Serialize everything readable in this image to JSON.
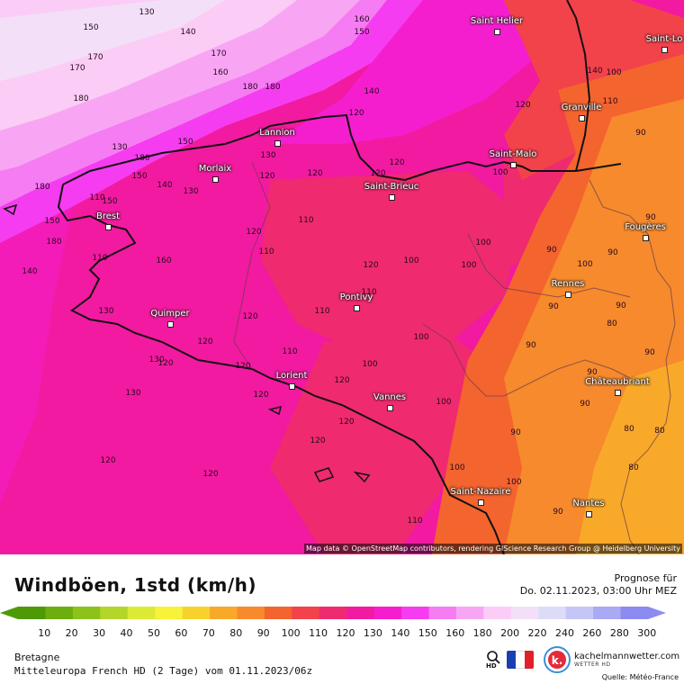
{
  "map": {
    "attribution": "Map data © OpenStreetMap contributors, rendering GIScience Research Group @ Heidelberg University",
    "cities": [
      {
        "name": "Saint Helier"
      },
      {
        "name": "Saint-Lo"
      },
      {
        "name": "Granville"
      },
      {
        "name": "Lannion"
      },
      {
        "name": "Saint-Malo"
      },
      {
        "name": "Morlaix"
      },
      {
        "name": "Saint-Brieuc"
      },
      {
        "name": "Brest"
      },
      {
        "name": "Fougères"
      },
      {
        "name": "Rennes"
      },
      {
        "name": "Pontivy"
      },
      {
        "name": "Quimper"
      },
      {
        "name": "Lorient"
      },
      {
        "name": "Châteaubriant"
      },
      {
        "name": "Vannes"
      },
      {
        "name": "Saint-Nazaire"
      },
      {
        "name": "Nantes"
      }
    ],
    "value_labels": [
      "130",
      "150",
      "140",
      "160",
      "170",
      "150",
      "170",
      "160",
      "180",
      "170",
      "180",
      "180",
      "140",
      "130",
      "120",
      "140",
      "100",
      "120",
      "110",
      "180",
      "150",
      "110",
      "180",
      "150",
      "140",
      "130",
      "120",
      "120",
      "120",
      "120",
      "130",
      "150",
      "180",
      "160",
      "110",
      "100",
      "120",
      "140",
      "100",
      "90",
      "150",
      "120",
      "130",
      "90",
      "130",
      "120",
      "90",
      "90",
      "120",
      "110",
      "100",
      "100",
      "90",
      "110",
      "110",
      "90",
      "90",
      "130",
      "120",
      "120",
      "90",
      "100",
      "120",
      "90",
      "80",
      "80",
      "120",
      "120",
      "100",
      "80",
      "110",
      "100",
      "90",
      "90",
      "100",
      "110",
      "120",
      "100",
      "120",
      "80",
      "100",
      "120",
      "110",
      "90"
    ]
  },
  "legend": {
    "title": "Windböen, 1std (km/h)",
    "forecast_label": "Prognose für",
    "forecast_date": "Do. 02.11.2023, 03:00 Uhr MEZ",
    "scale": [
      {
        "label": "10",
        "color": "#4d9a06"
      },
      {
        "label": "20",
        "color": "#6cae0f"
      },
      {
        "label": "30",
        "color": "#8cc21a"
      },
      {
        "label": "40",
        "color": "#b4d629"
      },
      {
        "label": "50",
        "color": "#dcea36"
      },
      {
        "label": "60",
        "color": "#f7f23a"
      },
      {
        "label": "70",
        "color": "#f8d22c"
      },
      {
        "label": "80",
        "color": "#f8a92a"
      },
      {
        "label": "90",
        "color": "#f68a2c"
      },
      {
        "label": "100",
        "color": "#f4642e"
      },
      {
        "label": "110",
        "color": "#f2424a"
      },
      {
        "label": "120",
        "color": "#ef2a6e"
      },
      {
        "label": "130",
        "color": "#f21aa0"
      },
      {
        "label": "140",
        "color": "#f51ecf"
      },
      {
        "label": "150",
        "color": "#f53cf0"
      },
      {
        "label": "160",
        "color": "#f57cf2"
      },
      {
        "label": "180",
        "color": "#f8a6f3"
      },
      {
        "label": "200",
        "color": "#fbcdf6"
      },
      {
        "label": "220",
        "color": "#f3e0f8"
      },
      {
        "label": "240",
        "color": "#dcdcf8"
      },
      {
        "label": "260",
        "color": "#c6c6f6"
      },
      {
        "label": "280",
        "color": "#a9a9f4"
      },
      {
        "label": "300",
        "color": "#8c8cf0"
      }
    ],
    "region": "Bretagne",
    "model": "Mitteleuropa French HD (2 Tage) vom 01.11.2023/06z",
    "hd_label": "HD",
    "brand_name": "kachelmannwetter.com",
    "brand_sub": "WETTER HD",
    "source": "Quelle: Météo-France"
  }
}
